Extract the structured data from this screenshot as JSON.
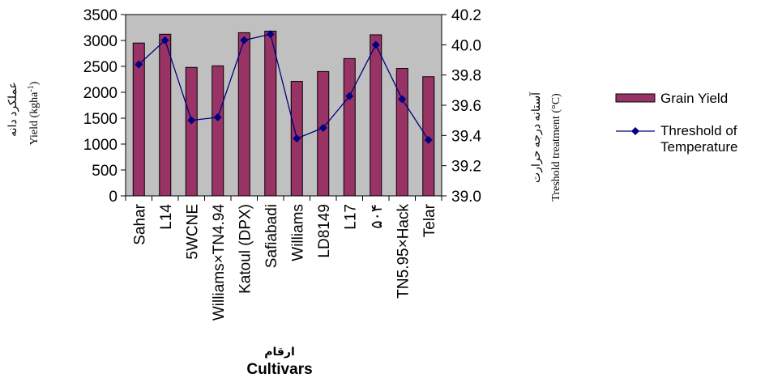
{
  "chart_data": {
    "type": "bar",
    "categories": [
      "Sahar",
      "L14",
      "5WCNE",
      "Williams×TN4.94",
      "Katoul (DPX)",
      "Safiabadi",
      "Williams",
      "LD8149",
      "L17",
      "۵۰۴",
      "TN5.95×Hack",
      "Telar"
    ],
    "series": [
      {
        "name": "Grain Yield",
        "type": "bar",
        "axis": "left",
        "color": "#993366",
        "values": [
          2950,
          3120,
          2480,
          2510,
          3150,
          3180,
          2210,
          2400,
          2650,
          3110,
          2460,
          2300
        ]
      },
      {
        "name": "Threshold of Temperature",
        "legend_lines": [
          "Threshold of",
          "Temperature"
        ],
        "type": "line",
        "axis": "right",
        "color": "#000080",
        "marker": "diamond",
        "values": [
          39.87,
          40.03,
          39.5,
          39.52,
          40.03,
          40.07,
          39.38,
          39.45,
          39.66,
          40.0,
          39.64,
          39.37
        ]
      }
    ],
    "y_left": {
      "ticks": [
        "0",
        "500",
        "1000",
        "1500",
        "2000",
        "2500",
        "3000",
        "3500"
      ],
      "lim": [
        0,
        3500
      ],
      "label_fa": "عملکرد دانه",
      "label_en": "Yield (kgha",
      "label_en_sup": "-1",
      "label_en_end": ")"
    },
    "y_right": {
      "ticks": [
        "39.0",
        "39.2",
        "39.4",
        "39.6",
        "39.8",
        "40.0",
        "40.2"
      ],
      "lim": [
        39.0,
        40.2
      ],
      "label_fa": "آستانه درجه حرارت",
      "label_en": "Treshold treatment (°C)"
    },
    "x_title_fa": "ارقام",
    "x_title": "Cultivars",
    "plot_background": "#c0c0c0",
    "legend_position": "right",
    "grid": false
  }
}
